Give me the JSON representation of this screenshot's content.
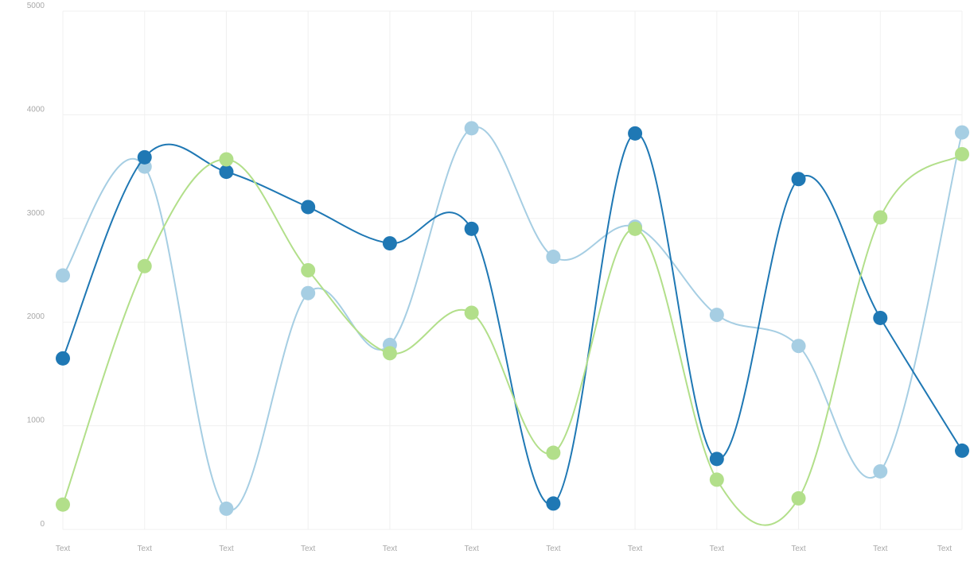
{
  "chart_data": {
    "type": "line",
    "categories": [
      "Text",
      "Text",
      "Text",
      "Text",
      "Text",
      "Text",
      "Text",
      "Text",
      "Text",
      "Text",
      "Text",
      "Text"
    ],
    "yticks": [
      "0",
      "1000",
      "2000",
      "3000",
      "4000",
      "5000"
    ],
    "ylim": [
      0,
      5000
    ],
    "grid": true,
    "curve": "smooth",
    "series": [
      {
        "color": "#a6cee3",
        "values": [
          2450,
          3500,
          200,
          2280,
          1780,
          3870,
          2630,
          2920,
          2070,
          1770,
          560,
          3830
        ]
      },
      {
        "color": "#1f78b4",
        "values": [
          1650,
          3590,
          3450,
          3110,
          2760,
          2900,
          250,
          3820,
          680,
          3380,
          2040,
          760
        ]
      },
      {
        "color": "#b2df8a",
        "values": [
          240,
          2540,
          3570,
          2500,
          1700,
          2090,
          740,
          2900,
          480,
          300,
          3010,
          3620
        ]
      }
    ]
  }
}
